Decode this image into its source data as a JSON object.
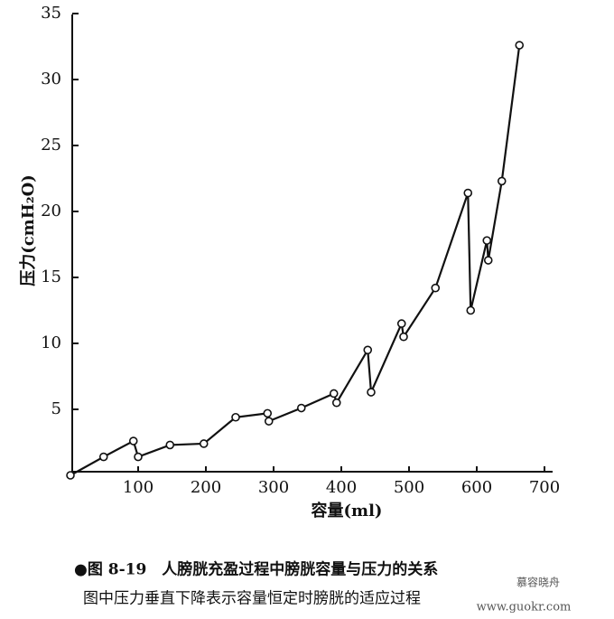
{
  "chart_data": {
    "type": "line",
    "x_label": "容量(ml)",
    "y_label": "压力(cmH₂O)",
    "x": [
      0,
      49,
      93,
      100,
      147,
      197,
      244,
      291,
      293,
      341,
      389,
      393,
      439,
      444,
      489,
      492,
      539,
      587,
      591,
      615,
      617,
      637,
      663
    ],
    "values": [
      0,
      1.4,
      2.6,
      1.4,
      2.3,
      2.4,
      4.4,
      4.7,
      4.1,
      5.1,
      6.2,
      5.5,
      9.5,
      6.3,
      11.5,
      10.5,
      14.2,
      21.4,
      12.5,
      17.8,
      16.3,
      22.3,
      32.6
    ],
    "color": "#111111",
    "xlim": [
      0,
      700
    ],
    "xticks": [
      100,
      200,
      300,
      400,
      500,
      600,
      700
    ],
    "ylim": [
      0,
      35
    ],
    "yticks": [
      5,
      10,
      15,
      20,
      25,
      30,
      35
    ],
    "caption": [
      "●图 8-19　人膀胱充盈过程中膀胱容量与压力的关系",
      "图中压力垂直下降表示容量恒定时膀胱的适应过程"
    ],
    "watermark": [
      "慕容晓舟",
      "www.guokr.com"
    ]
  }
}
